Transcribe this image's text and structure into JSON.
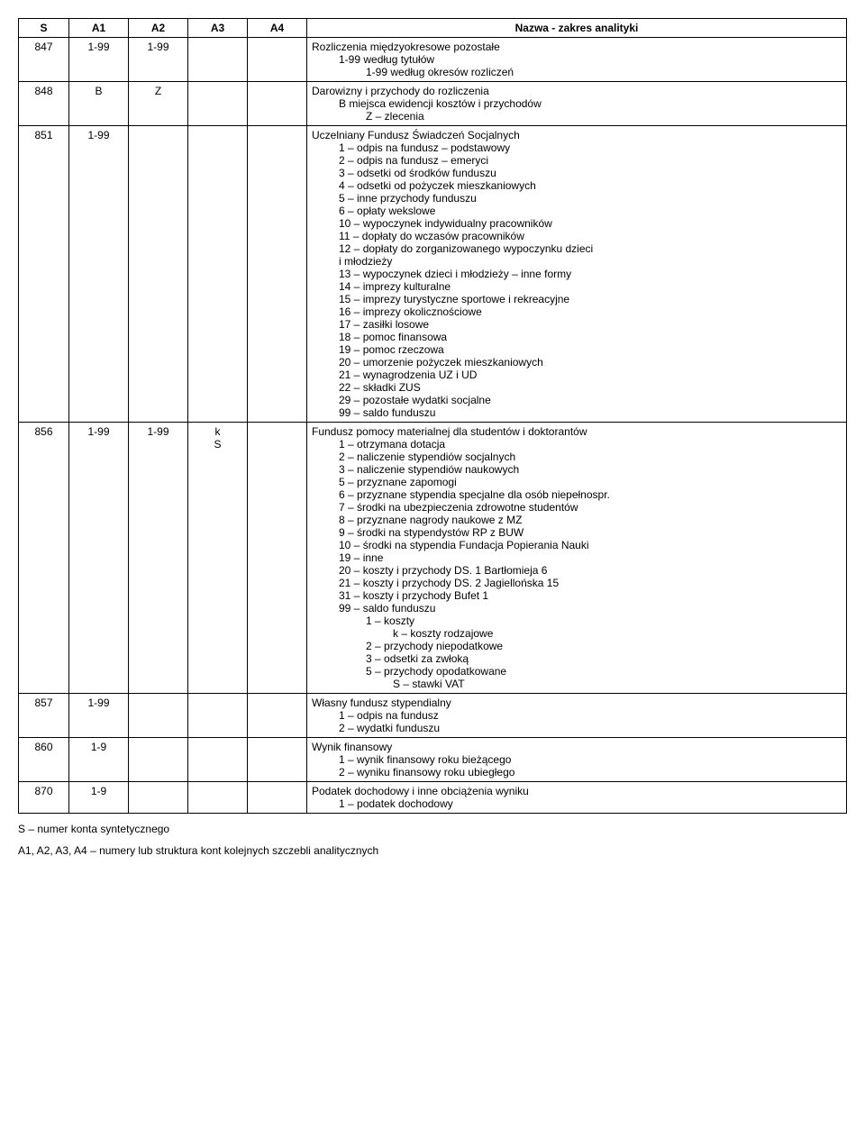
{
  "header": {
    "s": "S",
    "a1": "A1",
    "a2": "A2",
    "a3": "A3",
    "a4": "A4",
    "desc": "Nazwa - zakres analityki"
  },
  "rows": [
    {
      "s": "847",
      "a1": "1-99",
      "a2": "1-99",
      "a3": "",
      "a4": "",
      "lines": [
        {
          "t": "Rozliczenia międzyokresowe pozostałe"
        },
        {
          "t": "1-99 według tytułów",
          "i": 1
        },
        {
          "t": "1-99 według okresów rozliczeń",
          "i": 2
        }
      ]
    },
    {
      "s": "848",
      "a1": "B",
      "a2": "Z",
      "a3": "",
      "a4": "",
      "lines": [
        {
          "t": "Darowizny i przychody do rozliczenia"
        },
        {
          "t": "B miejsca ewidencji kosztów i przychodów",
          "i": 1
        },
        {
          "t": "Z – zlecenia",
          "i": 2
        }
      ]
    },
    {
      "s": "851",
      "a1": "1-99",
      "a2": "",
      "a3": "",
      "a4": "",
      "lines": [
        {
          "t": "Uczelniany Fundusz Świadczeń Socjalnych"
        },
        {
          "t": "1 – odpis na fundusz – podstawowy",
          "i": 1
        },
        {
          "t": "2 – odpis na fundusz – emeryci",
          "i": 1
        },
        {
          "t": "3 – odsetki od środków funduszu",
          "i": 1
        },
        {
          "t": "4 – odsetki od pożyczek mieszkaniowych",
          "i": 1
        },
        {
          "t": "5 – inne przychody funduszu",
          "i": 1
        },
        {
          "t": "6 – opłaty wekslowe",
          "i": 1
        },
        {
          "t": "10 – wypoczynek indywidualny pracowników",
          "i": 1
        },
        {
          "t": "11 – dopłaty do wczasów pracowników",
          "i": 1
        },
        {
          "t": "12 – dopłaty do zorganizowanego wypoczynku dzieci",
          "i": 1
        },
        {
          "t": "i młodzieży",
          "i": 1
        },
        {
          "t": "13 – wypoczynek dzieci i młodzieży – inne formy",
          "i": 1
        },
        {
          "t": "14 – imprezy kulturalne",
          "i": 1
        },
        {
          "t": "15 – imprezy turystyczne sportowe i rekreacyjne",
          "i": 1
        },
        {
          "t": "16 – imprezy okolicznościowe",
          "i": 1
        },
        {
          "t": "17 – zasiłki losowe",
          "i": 1
        },
        {
          "t": "18 – pomoc finansowa",
          "i": 1
        },
        {
          "t": "19 – pomoc rzeczowa",
          "i": 1
        },
        {
          "t": "20 – umorzenie pożyczek mieszkaniowych",
          "i": 1
        },
        {
          "t": "21 – wynagrodzenia UZ i UD",
          "i": 1
        },
        {
          "t": "22 – składki ZUS",
          "i": 1
        },
        {
          "t": "29 – pozostałe wydatki socjalne",
          "i": 1
        },
        {
          "t": "99 – saldo funduszu",
          "i": 1
        }
      ]
    },
    {
      "s": "856",
      "a1": "1-99",
      "a2": "1-99",
      "a3": "k\nS",
      "a4": "",
      "lines": [
        {
          "t": "Fundusz pomocy materialnej dla studentów i doktorantów"
        },
        {
          "t": "1 – otrzymana dotacja",
          "i": 1
        },
        {
          "t": "2 – naliczenie stypendiów socjalnych",
          "i": 1
        },
        {
          "t": "3 – naliczenie stypendiów naukowych",
          "i": 1
        },
        {
          "t": "5 – przyznane zapomogi",
          "i": 1
        },
        {
          "t": "6 – przyznane stypendia specjalne dla osób niepełnospr.",
          "i": 1
        },
        {
          "t": "7 – środki na ubezpieczenia zdrowotne studentów",
          "i": 1
        },
        {
          "t": "8 – przyznane nagrody naukowe z MZ",
          "i": 1
        },
        {
          "t": "9 – środki na stypendystów RP z BUW",
          "i": 1
        },
        {
          "t": "10 – środki na stypendia Fundacja Popierania Nauki",
          "i": 1
        },
        {
          "t": "19 – inne",
          "i": 1
        },
        {
          "t": "20 – koszty i przychody DS. 1 Bartłomieja 6",
          "i": 1
        },
        {
          "t": "21 – koszty i przychody DS. 2 Jagiellońska 15",
          "i": 1
        },
        {
          "t": "31 – koszty i przychody Bufet 1",
          "i": 1
        },
        {
          "t": "99 – saldo funduszu",
          "i": 1
        },
        {
          "t": "1 – koszty",
          "i": 2
        },
        {
          "t": "k – koszty rodzajowe",
          "i": 3
        },
        {
          "t": "2 – przychody niepodatkowe",
          "i": 2
        },
        {
          "t": "3 – odsetki za zwłoką",
          "i": 2
        },
        {
          "t": "5 – przychody opodatkowane",
          "i": 2
        },
        {
          "t": "S – stawki VAT",
          "i": 3
        }
      ]
    },
    {
      "s": "857",
      "a1": "1-99",
      "a2": "",
      "a3": "",
      "a4": "",
      "lines": [
        {
          "t": "Własny fundusz stypendialny"
        },
        {
          "t": "1 – odpis na fundusz",
          "i": 1
        },
        {
          "t": "2 – wydatki funduszu",
          "i": 1
        }
      ]
    },
    {
      "s": "860",
      "a1": "1-9",
      "a2": "",
      "a3": "",
      "a4": "",
      "lines": [
        {
          "t": "Wynik finansowy"
        },
        {
          "t": "1 – wynik finansowy roku bieżącego",
          "i": 1
        },
        {
          "t": "2 – wyniku finansowy roku ubiegłego",
          "i": 1
        }
      ]
    },
    {
      "s": "870",
      "a1": "1-9",
      "a2": "",
      "a3": "",
      "a4": "",
      "lines": [
        {
          "t": "Podatek dochodowy i inne obciążenia wyniku"
        },
        {
          "t": "1 – podatek dochodowy",
          "i": 1
        }
      ]
    }
  ],
  "footnotes": {
    "f1": "S – numer konta syntetycznego",
    "f2": "A1, A2, A3, A4 – numery lub struktura kont kolejnych szczebli analitycznych"
  }
}
